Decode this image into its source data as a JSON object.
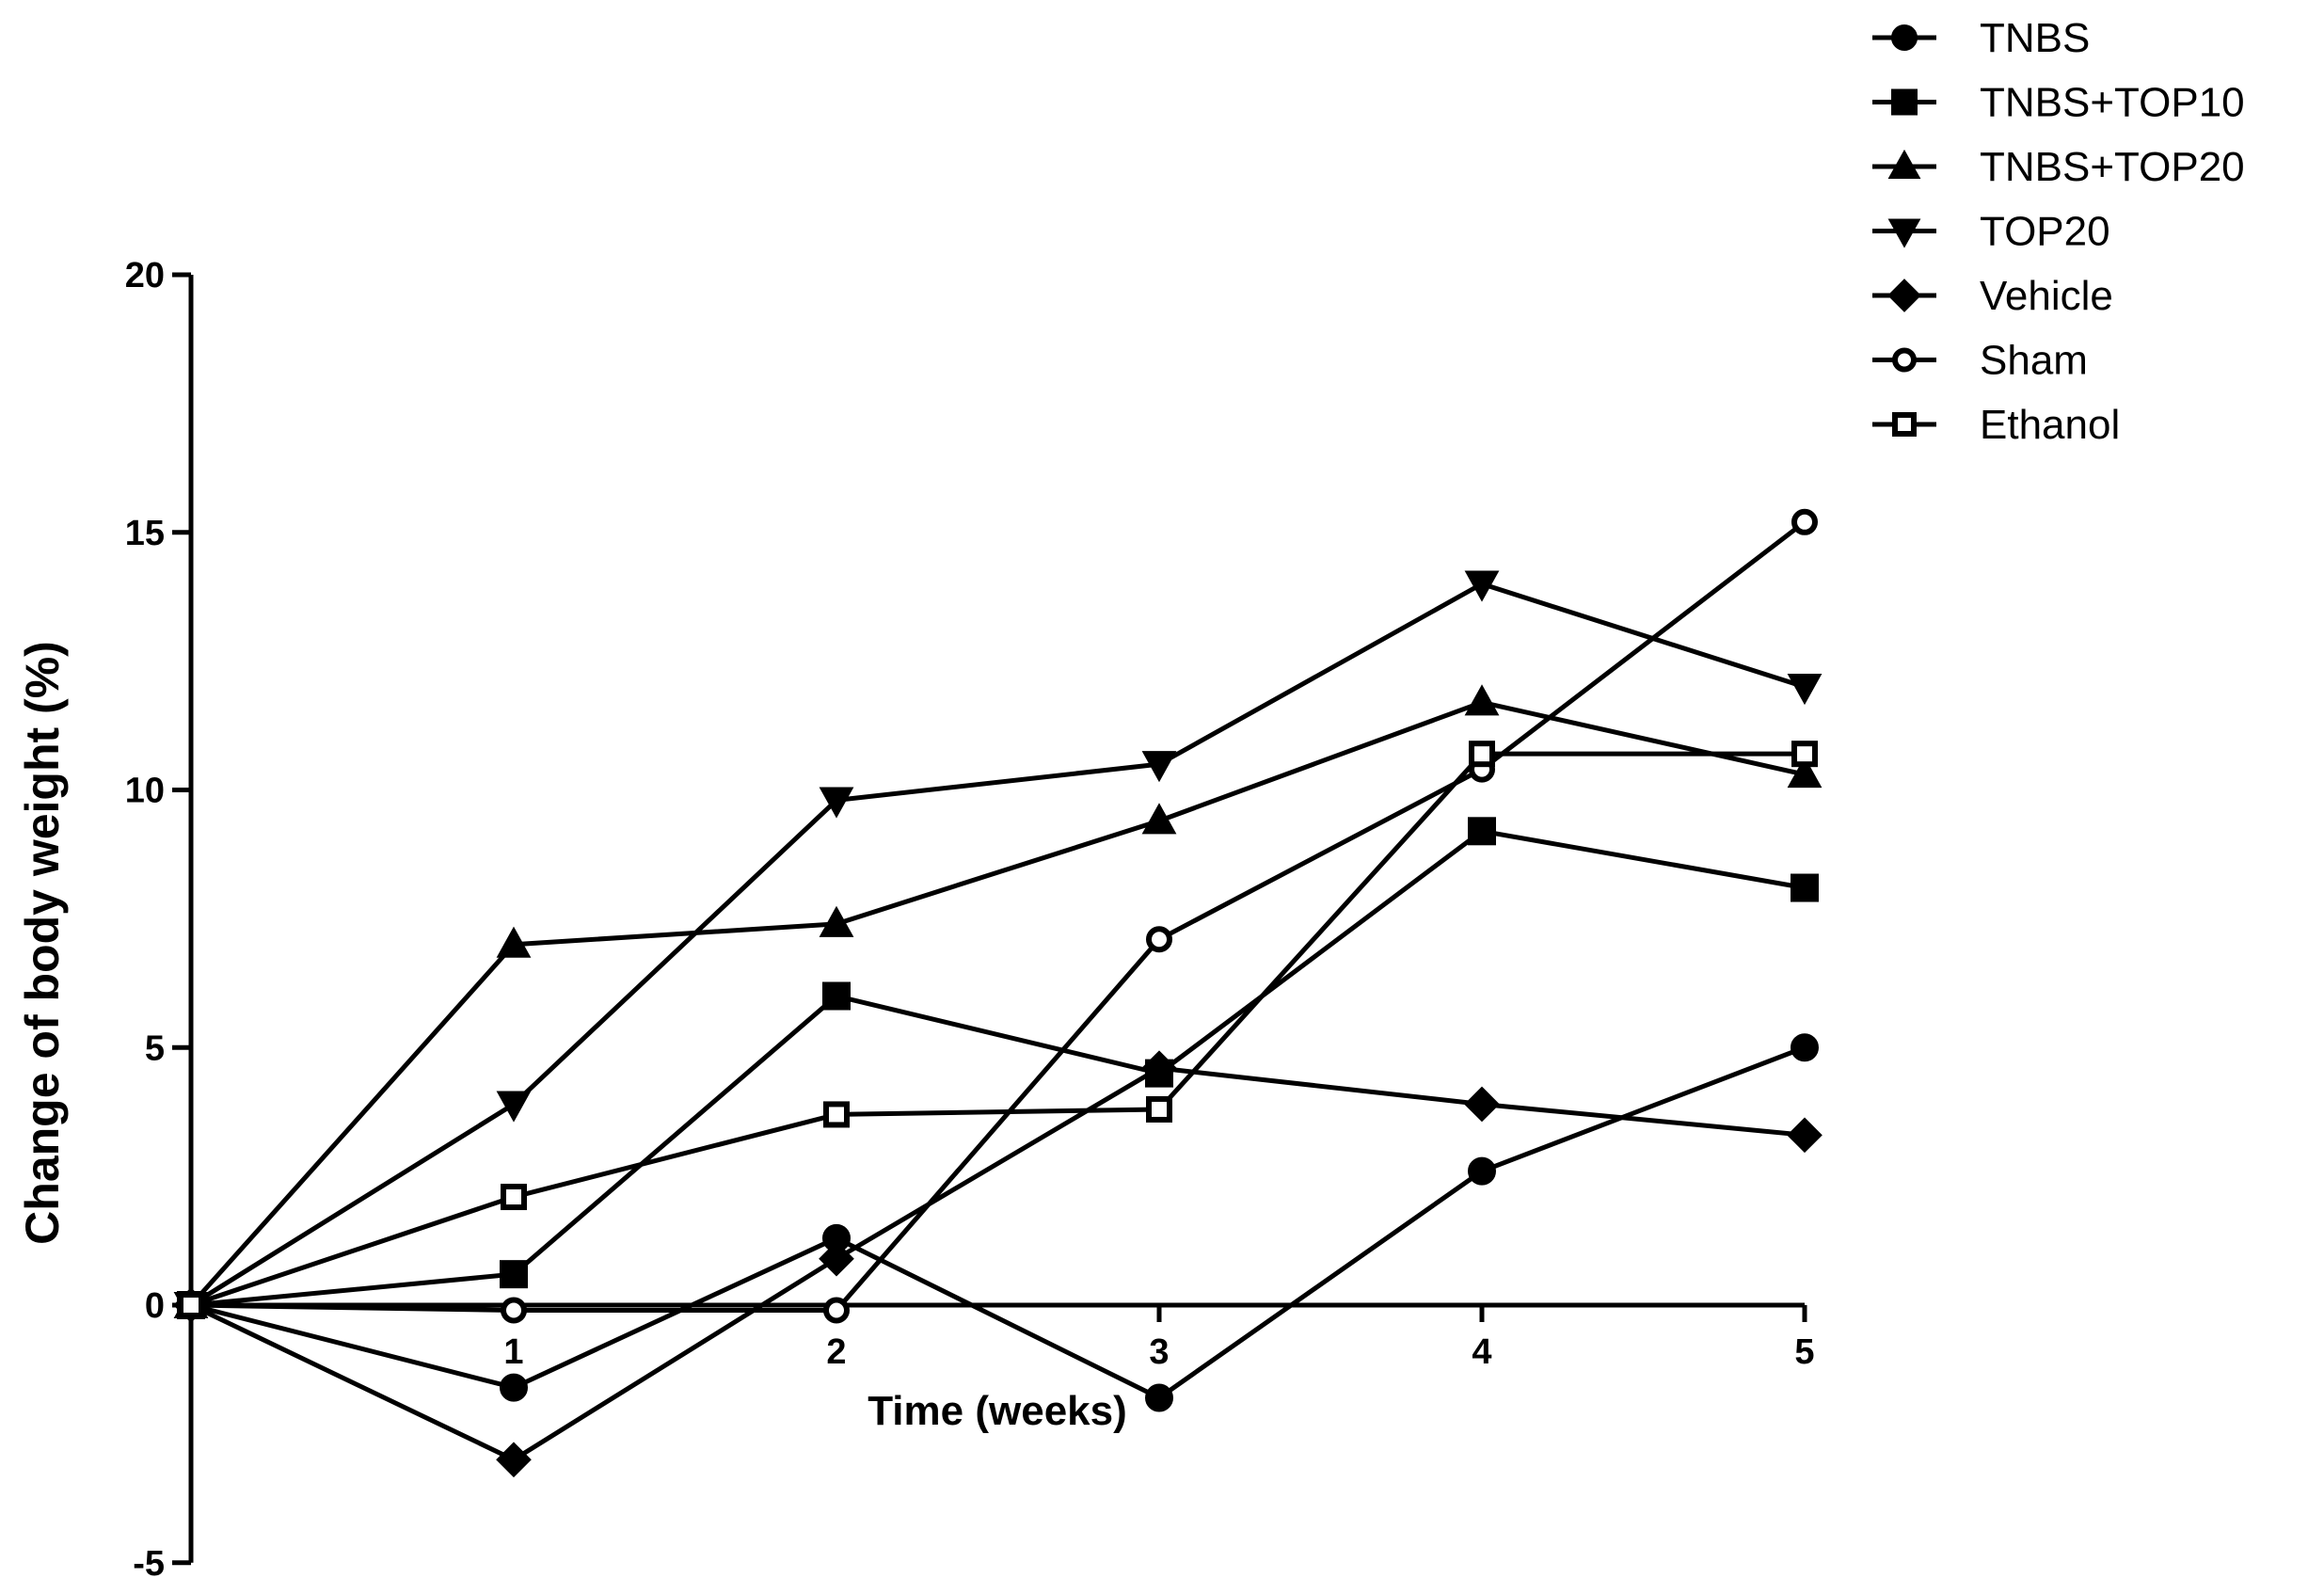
{
  "chart_data": {
    "type": "line",
    "title": "",
    "xlabel": "Time (weeks)",
    "ylabel": "Change of body weight (%)",
    "x": [
      0,
      1,
      2,
      3,
      4,
      5
    ],
    "x_ticks": [
      "1",
      "2",
      "3",
      "4",
      "5"
    ],
    "y_ticks": [
      "-5",
      "0",
      "5",
      "10",
      "15",
      "20"
    ],
    "xlim": [
      0,
      5
    ],
    "ylim": [
      -5,
      20
    ],
    "grid": false,
    "legend_position": "top-right",
    "series": [
      {
        "name": "TNBS",
        "marker": "circle-filled",
        "values": [
          0,
          -1.6,
          1.3,
          -1.8,
          2.6,
          5.0
        ]
      },
      {
        "name": "TNBS+TOP10",
        "marker": "square-filled",
        "values": [
          0,
          0.6,
          6.0,
          4.5,
          9.2,
          8.1
        ]
      },
      {
        "name": "TNBS+TOP20",
        "marker": "triangle-up-filled",
        "values": [
          0,
          7.0,
          7.4,
          9.4,
          11.7,
          10.3
        ]
      },
      {
        "name": "TOP20",
        "marker": "triangle-down-filled",
        "values": [
          0,
          3.9,
          9.8,
          10.5,
          14.0,
          12.0
        ]
      },
      {
        "name": "Vehicle",
        "marker": "diamond-filled",
        "values": [
          0,
          -3.0,
          0.9,
          4.6,
          3.9,
          3.3
        ]
      },
      {
        "name": "Sham",
        "marker": "circle-open",
        "values": [
          0,
          -0.1,
          -0.1,
          7.1,
          10.4,
          15.2
        ]
      },
      {
        "name": "Ethanol",
        "marker": "square-open",
        "values": [
          0,
          2.1,
          3.7,
          3.8,
          10.7,
          10.7
        ]
      }
    ]
  }
}
